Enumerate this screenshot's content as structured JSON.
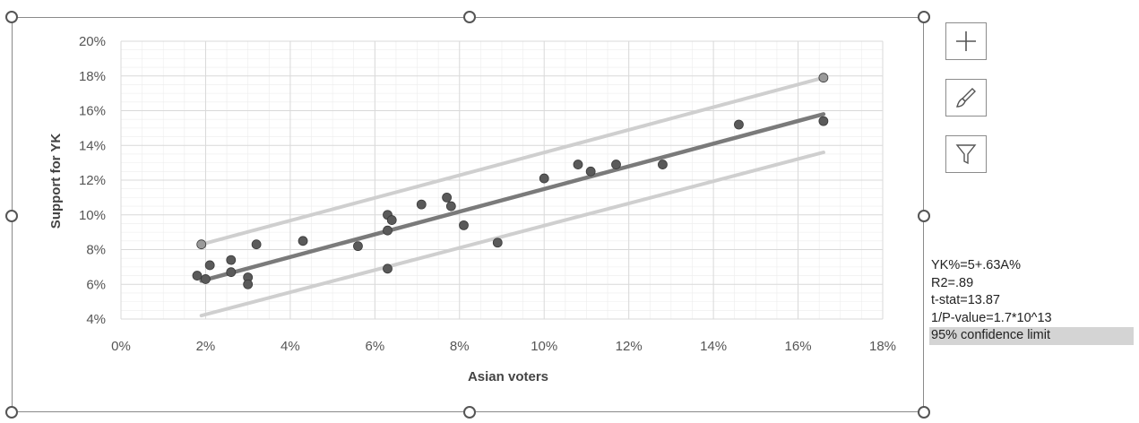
{
  "chart_data": {
    "type": "scatter",
    "xlabel": "Asian voters",
    "ylabel": "Support for YK",
    "xlim": [
      0,
      18
    ],
    "ylim": [
      4,
      20
    ],
    "x_ticks": [
      "0%",
      "2%",
      "4%",
      "6%",
      "8%",
      "10%",
      "12%",
      "14%",
      "16%",
      "18%"
    ],
    "y_ticks": [
      "20%",
      "18%",
      "16%",
      "14%",
      "12%",
      "10%",
      "8%",
      "6%",
      "4%"
    ],
    "grid": true,
    "points": [
      {
        "x": 1.9,
        "y": 8.3
      },
      {
        "x": 1.8,
        "y": 6.5
      },
      {
        "x": 2.0,
        "y": 6.3
      },
      {
        "x": 2.1,
        "y": 7.1
      },
      {
        "x": 2.6,
        "y": 7.4
      },
      {
        "x": 2.6,
        "y": 6.7
      },
      {
        "x": 3.0,
        "y": 6.4
      },
      {
        "x": 3.0,
        "y": 6.0
      },
      {
        "x": 3.2,
        "y": 8.3
      },
      {
        "x": 4.3,
        "y": 8.5
      },
      {
        "x": 5.6,
        "y": 8.2
      },
      {
        "x": 6.3,
        "y": 10.0
      },
      {
        "x": 6.4,
        "y": 9.7
      },
      {
        "x": 6.3,
        "y": 9.1
      },
      {
        "x": 6.3,
        "y": 6.9
      },
      {
        "x": 7.1,
        "y": 10.6
      },
      {
        "x": 7.7,
        "y": 11.0
      },
      {
        "x": 7.8,
        "y": 10.5
      },
      {
        "x": 8.1,
        "y": 9.4
      },
      {
        "x": 8.9,
        "y": 8.4
      },
      {
        "x": 10.0,
        "y": 12.1
      },
      {
        "x": 10.8,
        "y": 12.9
      },
      {
        "x": 11.1,
        "y": 12.5
      },
      {
        "x": 11.7,
        "y": 12.9
      },
      {
        "x": 12.8,
        "y": 12.9
      },
      {
        "x": 14.6,
        "y": 15.2
      },
      {
        "x": 16.6,
        "y": 17.9
      },
      {
        "x": 16.6,
        "y": 15.4
      }
    ],
    "trendline": {
      "x": [
        1.9,
        16.6
      ],
      "y": [
        6.2,
        15.8
      ]
    },
    "confidence_upper": {
      "x": [
        1.9,
        16.6
      ],
      "y": [
        8.3,
        17.9
      ]
    },
    "confidence_lower": {
      "x": [
        1.9,
        16.6
      ],
      "y": [
        4.2,
        13.6
      ]
    },
    "colors": {
      "points": "#5a5a5a",
      "trendline": "#7a7a7a",
      "confidence": "#cfcfcf",
      "grid": "#d9d9d9"
    }
  },
  "stats": {
    "equation": "YK%=5+.63A%",
    "r2": "R2=.89",
    "t_stat": "t-stat=13.87",
    "p_value": "1/P-value=1.7*10^13",
    "confidence_label": "95% confidence limit"
  },
  "side_buttons": [
    {
      "icon": "plus-icon"
    },
    {
      "icon": "brush-icon"
    },
    {
      "icon": "filter-icon"
    }
  ]
}
